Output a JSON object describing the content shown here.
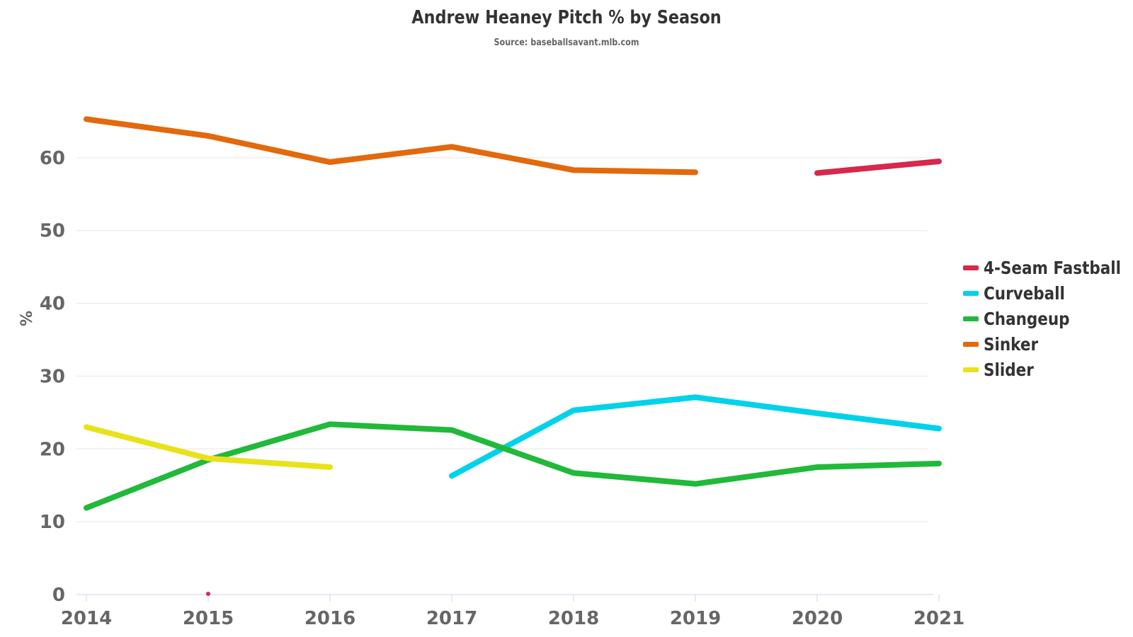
{
  "chart_data": {
    "type": "line",
    "title": "Andrew Heaney Pitch % by Season",
    "subtitle": "Source: baseballsavant.mlb.com",
    "xlabel": "",
    "ylabel": "%",
    "x": [
      2014,
      2015,
      2016,
      2017,
      2018,
      2019,
      2020,
      2021
    ],
    "ylim": [
      0,
      70
    ],
    "yticks": [
      0,
      10,
      20,
      30,
      40,
      50,
      60
    ],
    "grid": true,
    "legend_position": "right",
    "series": [
      {
        "name": "4-Seam Fastball",
        "color": "#d6294b",
        "values": [
          null,
          0.1,
          null,
          null,
          null,
          null,
          57.9,
          59.5
        ]
      },
      {
        "name": "Curveball",
        "color": "#00d2ea",
        "values": [
          null,
          null,
          null,
          16.3,
          25.3,
          27.1,
          24.9,
          22.8
        ]
      },
      {
        "name": "Changeup",
        "color": "#21b93a",
        "values": [
          11.9,
          18.5,
          23.4,
          22.6,
          16.7,
          15.2,
          17.5,
          18.0
        ]
      },
      {
        "name": "Sinker",
        "color": "#e2690c",
        "values": [
          65.3,
          63.0,
          59.4,
          61.5,
          58.3,
          58.0,
          null,
          null
        ]
      },
      {
        "name": "Slider",
        "color": "#e8e21c",
        "values": [
          23.0,
          18.7,
          17.5,
          null,
          null,
          null,
          null,
          null
        ]
      }
    ]
  }
}
